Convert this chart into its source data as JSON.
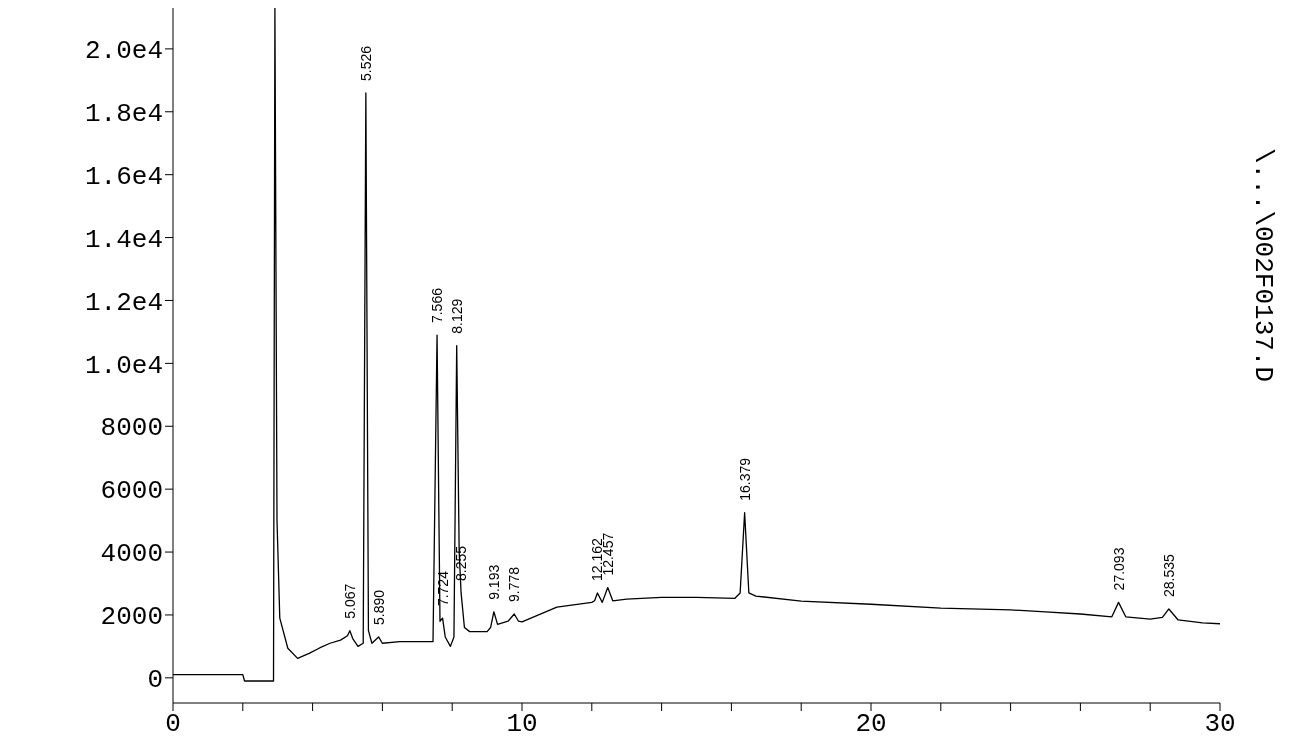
{
  "chart_data": {
    "type": "line",
    "x": [
      0,
      1,
      2,
      2.05,
      2.88,
      2.92,
      2.98,
      3.06,
      3.29,
      3.57,
      3.9,
      4.2,
      4.5,
      4.8,
      5.0,
      5.067,
      5.15,
      5.3,
      5.45,
      5.526,
      5.6,
      5.7,
      5.89,
      6.0,
      6.5,
      7.0,
      7.45,
      7.566,
      7.65,
      7.724,
      7.8,
      7.95,
      8.05,
      8.129,
      8.2,
      8.255,
      8.35,
      8.5,
      9.0,
      9.1,
      9.193,
      9.3,
      9.6,
      9.778,
      9.9,
      10,
      11,
      12,
      12.08,
      12.162,
      12.3,
      12.457,
      12.6,
      13,
      14,
      15,
      16.1,
      16.25,
      16.379,
      16.5,
      16.7,
      18,
      20,
      22,
      24,
      25,
      26,
      26.9,
      27.093,
      27.3,
      28,
      28.35,
      28.535,
      28.8,
      29.5,
      30
    ],
    "series": [
      {
        "color": "#000000",
        "values": [
          100,
          100,
          100,
          -100,
          -100,
          21300,
          5000,
          1900,
          940,
          620,
          780,
          950,
          1100,
          1200,
          1340,
          1500,
          1250,
          1000,
          1100,
          18600,
          1500,
          1100,
          1300,
          1100,
          1150,
          1150,
          1150,
          10900,
          1800,
          1900,
          1300,
          1000,
          1300,
          10560,
          4000,
          2700,
          1600,
          1470,
          1470,
          1600,
          2100,
          1700,
          1800,
          2030,
          1800,
          1780,
          2250,
          2400,
          2450,
          2700,
          2400,
          2870,
          2450,
          2500,
          2560,
          2560,
          2530,
          2700,
          5250,
          2700,
          2600,
          2440,
          2340,
          2220,
          2160,
          2100,
          2030,
          1940,
          2400,
          1940,
          1870,
          1920,
          2190,
          1840,
          1750,
          1720
        ]
      }
    ],
    "xlim": [
      0,
      30
    ],
    "xticks": [
      0,
      {
        "value": 2,
        "label": null
      },
      {
        "value": 4,
        "label": null
      },
      {
        "value": 6,
        "label": null
      },
      {
        "value": 8,
        "label": null
      },
      10,
      {
        "value": 12,
        "label": null
      },
      {
        "value": 14,
        "label": null
      },
      {
        "value": 16,
        "label": null
      },
      {
        "value": 18,
        "label": null
      },
      20,
      {
        "value": 22,
        "label": null
      },
      {
        "value": 24,
        "label": null
      },
      {
        "value": 26,
        "label": null
      },
      {
        "value": 28,
        "label": null
      },
      30
    ],
    "ylim": [
      -800,
      21300
    ],
    "yticks": [
      0,
      2000,
      4000,
      6000,
      8000,
      {
        "value": 10000,
        "label": "1.0e4"
      },
      {
        "value": 12000,
        "label": "1.2e4"
      },
      {
        "value": 14000,
        "label": "1.4e4"
      },
      {
        "value": 16000,
        "label": "1.6e4"
      },
      {
        "value": 18000,
        "label": "1.8e4"
      },
      {
        "value": 20000,
        "label": "2.0e4"
      }
    ],
    "grid": false,
    "legend": false,
    "marker": "none",
    "line_style": "solid",
    "annotations": [
      {
        "text": "5.067",
        "x": 5.067,
        "y": 1500
      },
      {
        "text": "5.526",
        "x": 5.526,
        "y": 18600
      },
      {
        "text": "5.890",
        "x": 5.89,
        "y": 1300
      },
      {
        "text": "7.566",
        "x": 7.566,
        "y": 10900
      },
      {
        "text": "7.724",
        "x": 7.724,
        "y": 1900
      },
      {
        "text": "8.129",
        "x": 8.129,
        "y": 10560
      },
      {
        "text": "8.255",
        "x": 8.255,
        "y": 2700
      },
      {
        "text": "9.193",
        "x": 9.193,
        "y": 2100
      },
      {
        "text": "9.778",
        "x": 9.778,
        "y": 2030
      },
      {
        "text": "12.162",
        "x": 12.162,
        "y": 2700
      },
      {
        "text": "12.457",
        "x": 12.457,
        "y": 2870
      },
      {
        "text": "16.379",
        "x": 16.379,
        "y": 5250
      },
      {
        "text": "27.093",
        "x": 27.093,
        "y": 2400
      },
      {
        "text": "28.535",
        "x": 28.535,
        "y": 2190
      },
      "\\...\\002F0137.D"
    ]
  }
}
